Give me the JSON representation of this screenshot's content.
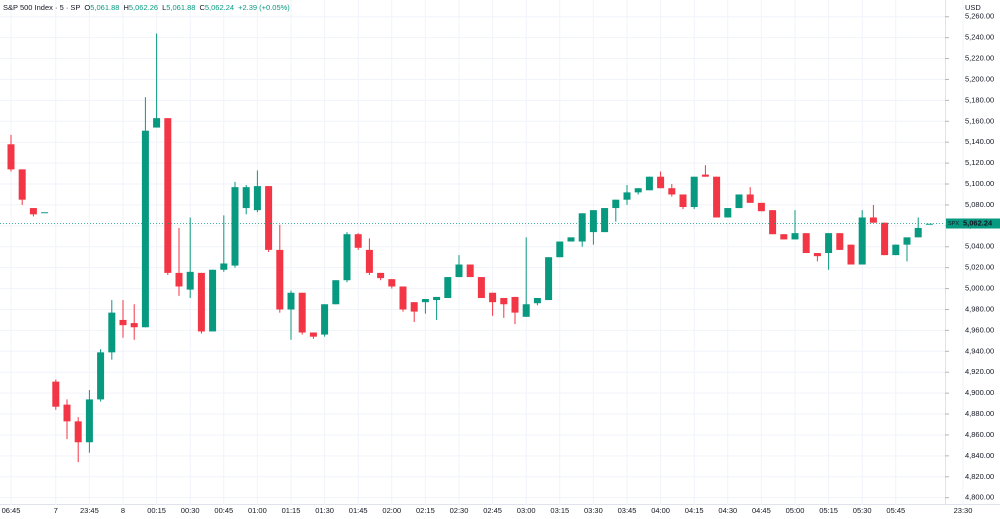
{
  "chart_data": {
    "type": "candlestick",
    "header": {
      "title": "S&P 500 Index · 5 · SP",
      "ohlc": [
        {
          "key": "O",
          "value": "5,061.88"
        },
        {
          "key": "H",
          "value": "5,062.26"
        },
        {
          "key": "L",
          "value": "5,061.88"
        },
        {
          "key": "C",
          "value": "5,062.24"
        }
      ],
      "change": "+2.39 (+0.05%)"
    },
    "currency": "USD",
    "symbol": "SPX",
    "last_price": {
      "value": 5062.24,
      "label": "5,062.24"
    },
    "up_color": "#089981",
    "down_color": "#f23645",
    "grid": true,
    "ylim": [
      4793,
      5276
    ],
    "yticks": [
      {
        "value": 4800,
        "label": "4,800.00"
      },
      {
        "value": 4820,
        "label": "4,820.00"
      },
      {
        "value": 4840,
        "label": "4,840.00"
      },
      {
        "value": 4860,
        "label": "4,860.00"
      },
      {
        "value": 4880,
        "label": "4,880.00"
      },
      {
        "value": 4900,
        "label": "4,900.00"
      },
      {
        "value": 4920,
        "label": "4,920.00"
      },
      {
        "value": 4940,
        "label": "4,940.00"
      },
      {
        "value": 4960,
        "label": "4,960.00"
      },
      {
        "value": 4980,
        "label": "4,980.00"
      },
      {
        "value": 5000,
        "label": "5,000.00"
      },
      {
        "value": 5020,
        "label": "5,020.00"
      },
      {
        "value": 5040,
        "label": "5,040.00"
      },
      {
        "value": 5060,
        "label": "5,060.00"
      },
      {
        "value": 5080,
        "label": "5,080.00"
      },
      {
        "value": 5100,
        "label": "5,100.00"
      },
      {
        "value": 5120,
        "label": "5,120.00"
      },
      {
        "value": 5140,
        "label": "5,140.00"
      },
      {
        "value": 5160,
        "label": "5,160.00"
      },
      {
        "value": 5180,
        "label": "5,180.00"
      },
      {
        "value": 5200,
        "label": "5,200.00"
      },
      {
        "value": 5220,
        "label": "5,220.00"
      },
      {
        "value": 5240,
        "label": "5,240.00"
      },
      {
        "value": 5260,
        "label": "5,260.00"
      }
    ],
    "categories": [
      "06:45",
      null,
      null,
      null,
      "7",
      null,
      null,
      "23:45",
      null,
      null,
      "8",
      null,
      null,
      "00:15",
      null,
      null,
      "00:30",
      null,
      null,
      "00:45",
      null,
      null,
      "01:00",
      null,
      null,
      "01:15",
      null,
      null,
      "01:30",
      null,
      null,
      "01:45",
      null,
      null,
      "02:00",
      null,
      null,
      "02:15",
      null,
      null,
      "02:30",
      null,
      null,
      "02:45",
      null,
      null,
      "03:00",
      null,
      null,
      "03:15",
      null,
      null,
      "03:30",
      null,
      null,
      "03:45",
      null,
      null,
      "04:00",
      null,
      null,
      "04:15",
      null,
      null,
      "04:30",
      null,
      null,
      "04:45",
      null,
      null,
      "05:00",
      null,
      null,
      "05:15",
      null,
      null,
      "05:30",
      null,
      null,
      "05:45",
      null,
      null,
      null,
      null,
      null,
      "23:30"
    ],
    "open": [
      5138,
      5114,
      5077,
      5073,
      4911,
      4889,
      4873,
      4853,
      4894,
      4939,
      4970,
      4967,
      4963,
      5154,
      5163,
      5015,
      4999,
      5015,
      4959,
      5018,
      5022,
      5077,
      5075,
      5098,
      5037,
      4980,
      4996,
      4958,
      4956,
      4985,
      5008,
      5052,
      5037,
      5015,
      5009,
      5002,
      4987,
      4987,
      4989,
      4991,
      5011,
      5023,
      5011,
      4996,
      4991,
      4992,
      4973,
      4986,
      4989,
      5030,
      5045,
      5045,
      5054,
      5054,
      5077,
      5085,
      5092,
      5094,
      5107,
      5096,
      5090,
      5078,
      5109,
      5107,
      5068,
      5077,
      5090,
      5082,
      5075,
      5052,
      5047,
      5053,
      5034,
      5034,
      5053,
      5042,
      5023,
      5068,
      5063,
      5032,
      5042,
      5049,
      5062,
      null,
      null,
      null
    ],
    "high": [
      5147,
      5114,
      5077,
      5073,
      4913,
      4894,
      4877,
      4903,
      4942,
      4989,
      4989,
      4985,
      5183,
      5244,
      5163,
      5058,
      5068,
      5015,
      5018,
      5070,
      5102,
      5099,
      5113,
      5098,
      5061,
      4998,
      4996,
      4958,
      4985,
      5008,
      5054,
      5053,
      5048,
      5015,
      5009,
      5002,
      4987,
      4990,
      4992,
      5011,
      5032,
      5023,
      5011,
      4996,
      4991,
      4992,
      5049,
      4991,
      5030,
      5045,
      5049,
      5072,
      5075,
      5077,
      5085,
      5099,
      5096,
      5107,
      5112,
      5100,
      5090,
      5107,
      5118,
      5107,
      5077,
      5090,
      5097,
      5082,
      5075,
      5052,
      5075,
      5053,
      5034,
      5053,
      5053,
      5042,
      5075,
      5080,
      5063,
      5042,
      5049,
      5068,
      5062,
      null,
      null,
      null
    ],
    "low": [
      5112,
      5080,
      5069,
      5073,
      4884,
      4856,
      4834,
      4843,
      4892,
      4932,
      4953,
      4951,
      4963,
      5154,
      5013,
      4993,
      4991,
      4957,
      4959,
      5016,
      5020,
      5071,
      5073,
      5035,
      4977,
      4951,
      4956,
      4952,
      4954,
      4985,
      5006,
      5037,
      5013,
      5008,
      5000,
      4978,
      4968,
      4976,
      4970,
      4991,
      5011,
      5011,
      4991,
      4974,
      4972,
      4966,
      4973,
      4984,
      4989,
      5030,
      5045,
      5040,
      5042,
      5054,
      5064,
      5080,
      5090,
      5094,
      5096,
      5088,
      5076,
      5076,
      5107,
      5068,
      5068,
      5077,
      5082,
      5074,
      5052,
      5047,
      5047,
      5034,
      5026,
      5018,
      5037,
      5023,
      5023,
      5063,
      5032,
      5032,
      5026,
      5049,
      5062,
      null,
      null,
      null
    ],
    "close": [
      5114,
      5085,
      5071,
      5073,
      4887,
      4873,
      4853,
      4894,
      4939,
      4977,
      4965,
      4963,
      5151,
      5163,
      5015,
      5002,
      5016,
      4959,
      5018,
      5024,
      5097,
      5097,
      5098,
      5037,
      4980,
      4996,
      4958,
      4954,
      4985,
      5008,
      5052,
      5039,
      5015,
      5010,
      5002,
      4980,
      4978,
      4990,
      4992,
      5011,
      5023,
      5011,
      4991,
      4987,
      4985,
      4977,
      4985,
      4991,
      5030,
      5045,
      5049,
      5072,
      5075,
      5077,
      5085,
      5092,
      5096,
      5107,
      5096,
      5090,
      5078,
      5107,
      5107,
      5068,
      5077,
      5090,
      5082,
      5074,
      5052,
      5047,
      5053,
      5034,
      5031,
      5053,
      5037,
      5023,
      5068,
      5063,
      5032,
      5042,
      5049,
      5058,
      5062,
      null,
      null,
      null
    ]
  }
}
